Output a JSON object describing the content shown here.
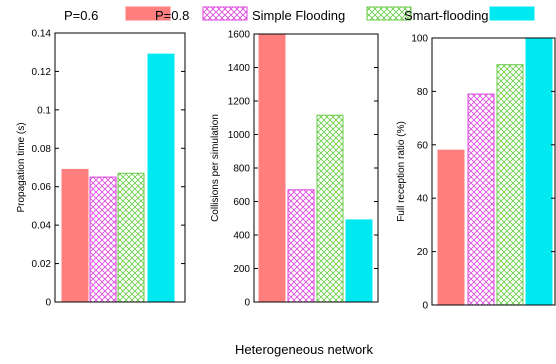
{
  "figure": {
    "xlabel": "Heterogeneous network"
  },
  "legend": [
    {
      "label": "P=0.6",
      "pattern": "solid-red"
    },
    {
      "label": "P=0.8",
      "pattern": "cross-magenta"
    },
    {
      "label": "Simple Flooding",
      "pattern": "cross-green"
    },
    {
      "label": "Smart-flooding",
      "pattern": "solid-cyan"
    }
  ],
  "colors": {
    "p06": "#ff7f7f",
    "p08": "#dd44dd",
    "simple": "#66cc44",
    "smart": "#00e8f0"
  },
  "chart_data": [
    {
      "type": "bar",
      "ylabel": "Propagation time (s)",
      "ylim": [
        0,
        0.14
      ],
      "yticks": [
        "0",
        "0.02",
        "0.04",
        "0.06",
        "0.08",
        "0.1",
        "0.12",
        "0.14"
      ],
      "series": [
        {
          "name": "P=0.6",
          "values": [
            0.069
          ]
        },
        {
          "name": "P=0.8",
          "values": [
            0.065
          ]
        },
        {
          "name": "Simple Flooding",
          "values": [
            0.067
          ]
        },
        {
          "name": "Smart-flooding",
          "values": [
            0.129
          ]
        }
      ]
    },
    {
      "type": "bar",
      "ylabel": "Collisions per simulation",
      "ylim": [
        0,
        1600
      ],
      "yticks": [
        "0",
        "200",
        "400",
        "600",
        "800",
        "1000",
        "1200",
        "1400",
        "1600"
      ],
      "series": [
        {
          "name": "P=0.6",
          "values": [
            1600
          ]
        },
        {
          "name": "P=0.8",
          "values": [
            670
          ]
        },
        {
          "name": "Simple Flooding",
          "values": [
            1115
          ]
        },
        {
          "name": "Smart-flooding",
          "values": [
            490
          ]
        }
      ]
    },
    {
      "type": "bar",
      "ylabel": "Full reception ratio (%)",
      "ylim": [
        0,
        100
      ],
      "yticks": [
        "0",
        "20",
        "40",
        "60",
        "80",
        "100"
      ],
      "series": [
        {
          "name": "P=0.6",
          "values": [
            58
          ]
        },
        {
          "name": "P=0.8",
          "values": [
            79
          ]
        },
        {
          "name": "Simple Flooding",
          "values": [
            90
          ]
        },
        {
          "name": "Smart-flooding",
          "values": [
            100
          ]
        }
      ]
    }
  ]
}
